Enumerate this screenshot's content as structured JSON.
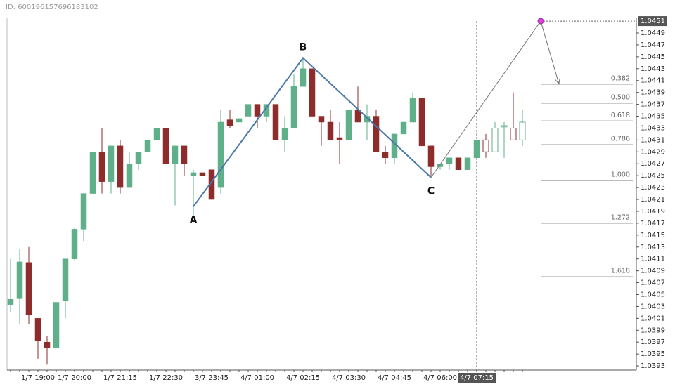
{
  "chart_data": {
    "type": "candlestick",
    "title": "ID: 600196157696183102",
    "ohlc": [
      [
        1.04033,
        1.0411,
        1.0402,
        1.04042
      ],
      [
        1.04043,
        1.04127,
        1.04,
        1.04105
      ],
      [
        1.04104,
        1.0413,
        1.04,
        1.04016
      ],
      [
        1.0401,
        1.0401,
        1.03942,
        1.03972
      ],
      [
        1.0397,
        1.0398,
        1.03932,
        1.0396
      ],
      [
        1.0396,
        1.04037,
        1.0396,
        1.04037
      ],
      [
        1.04039,
        1.0411,
        1.0401,
        1.0411
      ],
      [
        1.0411,
        1.04162,
        1.04108,
        1.0416
      ],
      [
        1.0416,
        1.0422,
        1.0414,
        1.0422
      ],
      [
        1.0422,
        1.0429,
        1.0422,
        1.0429
      ],
      [
        1.0429,
        1.0433,
        1.0422,
        1.0424
      ],
      [
        1.0424,
        1.043,
        1.0422,
        1.043
      ],
      [
        1.043,
        1.0431,
        1.0422,
        1.0423
      ],
      [
        1.0423,
        1.0429,
        1.0423,
        1.0427
      ],
      [
        1.0427,
        1.0429,
        1.0426,
        1.0429
      ],
      [
        1.0429,
        1.0431,
        1.0429,
        1.0431
      ],
      [
        1.0431,
        1.0433,
        1.0431,
        1.0433
      ],
      [
        1.0433,
        1.0433,
        1.0427,
        1.0427
      ],
      [
        1.0427,
        1.043,
        1.042,
        1.043
      ],
      [
        1.043,
        1.043,
        1.0425,
        1.0427
      ],
      [
        1.0425,
        1.0426,
        1.0418,
        1.04255
      ],
      [
        1.04255,
        1.04255,
        1.0425,
        1.0425
      ],
      [
        1.0426,
        1.0426,
        1.0421,
        1.0421
      ],
      [
        1.0423,
        1.0436,
        1.0422,
        1.0434
      ],
      [
        1.04344,
        1.0436,
        1.0433,
        1.04334
      ],
      [
        1.0434,
        1.04346,
        1.0434,
        1.04346
      ],
      [
        1.0435,
        1.0437,
        1.0435,
        1.0437
      ],
      [
        1.0437,
        1.0437,
        1.0433,
        1.0435
      ],
      [
        1.0435,
        1.0437,
        1.0434,
        1.0437
      ],
      [
        1.0437,
        1.0437,
        1.0431,
        1.0431
      ],
      [
        1.0431,
        1.0435,
        1.0429,
        1.0433
      ],
      [
        1.0433,
        1.0442,
        1.0433,
        1.044
      ],
      [
        1.044,
        1.0445,
        1.044,
        1.0443
      ],
      [
        1.0443,
        1.0443,
        1.0435,
        1.0435
      ],
      [
        1.0435,
        1.0435,
        1.043,
        1.0434
      ],
      [
        1.0434,
        1.0436,
        1.0431,
        1.0431
      ],
      [
        1.04314,
        1.0434,
        1.0427,
        1.0431
      ],
      [
        1.0431,
        1.0436,
        1.0431,
        1.0436
      ],
      [
        1.0436,
        1.044,
        1.0434,
        1.0434
      ],
      [
        1.0434,
        1.0437,
        1.0431,
        1.0435
      ],
      [
        1.0435,
        1.0436,
        1.0429,
        1.0429
      ],
      [
        1.0429,
        1.043,
        1.0427,
        1.0428
      ],
      [
        1.0428,
        1.0432,
        1.0427,
        1.0432
      ],
      [
        1.0432,
        1.0434,
        1.0432,
        1.0434
      ],
      [
        1.0434,
        1.0439,
        1.0434,
        1.0438
      ],
      [
        1.0438,
        1.0438,
        1.043,
        1.043
      ],
      [
        1.043,
        1.043,
        1.0425,
        1.04265
      ],
      [
        1.04265,
        1.0427,
        1.0426,
        1.0427
      ],
      [
        1.0427,
        1.0428,
        1.0426,
        1.0428
      ],
      [
        1.0428,
        1.0428,
        1.0426,
        1.0426
      ],
      [
        1.0426,
        1.0428,
        1.0426,
        1.0428
      ],
      [
        1.0428,
        1.0431,
        1.0428,
        1.0431
      ],
      [
        1.0431,
        1.0432,
        1.0428,
        1.0429
      ],
      [
        1.0429,
        1.0434,
        1.0429,
        1.0433
      ],
      [
        1.04332,
        1.0434,
        1.0428,
        1.04334
      ],
      [
        1.0433,
        1.0439,
        1.0431,
        1.0431
      ],
      [
        1.0431,
        1.0436,
        1.043,
        1.0434
      ]
    ],
    "hollow_from": 52,
    "up_color": "#5fb08a",
    "down_color": "#8e2c2c",
    "ylim": [
      1.03923,
      1.04516
    ],
    "yticks": [
      1.0393,
      1.0395,
      1.0397,
      1.0399,
      1.0401,
      1.0403,
      1.0405,
      1.0407,
      1.0409,
      1.0411,
      1.0413,
      1.0415,
      1.0417,
      1.0419,
      1.0421,
      1.0423,
      1.0425,
      1.0427,
      1.0429,
      1.0431,
      1.0433,
      1.0435,
      1.0437,
      1.0439,
      1.0441,
      1.0443,
      1.0445,
      1.0447,
      1.0449
    ],
    "last_price": 1.0451,
    "x_labels": [
      {
        "index": 3,
        "label": "1/7 19:00"
      },
      {
        "index": 7,
        "label": "1/7 20:00"
      },
      {
        "index": 12,
        "label": "1/7 21:15"
      },
      {
        "index": 17,
        "label": "1/7 22:30"
      },
      {
        "index": 22,
        "label": "3/7 23:45"
      },
      {
        "index": 27,
        "label": "4/7 01:00"
      },
      {
        "index": 32,
        "label": "4/7 02:15"
      },
      {
        "index": 37,
        "label": "4/7 03:30"
      },
      {
        "index": 42,
        "label": "4/7 04:45"
      },
      {
        "index": 47,
        "label": "4/7 06:00"
      }
    ],
    "cursor": {
      "index": 51,
      "label": "4/7 07:15"
    },
    "pattern": {
      "color": "#4a78a8",
      "points": [
        {
          "label": "A",
          "index": 20,
          "price": 1.04198
        },
        {
          "label": "B",
          "index": 32,
          "price": 1.04448
        },
        {
          "label": "C",
          "index": 46,
          "price": 1.04247
        }
      ]
    },
    "projection": {
      "color": "#777777",
      "marker_color": "#e040e0",
      "points": [
        {
          "index": 46,
          "price": 1.04247
        },
        {
          "index": 58,
          "price": 1.0451
        },
        {
          "index": 60,
          "price": 1.04404
        }
      ]
    },
    "fib_levels": [
      {
        "label": "0.382",
        "price": 1.04404
      },
      {
        "label": "0.500",
        "price": 1.04372
      },
      {
        "label": "0.618",
        "price": 1.04342
      },
      {
        "label": "0.786",
        "price": 1.04302
      },
      {
        "label": "1.000",
        "price": 1.04242
      },
      {
        "label": "1.272",
        "price": 1.0417
      },
      {
        "label": "1.618",
        "price": 1.0408
      }
    ]
  }
}
